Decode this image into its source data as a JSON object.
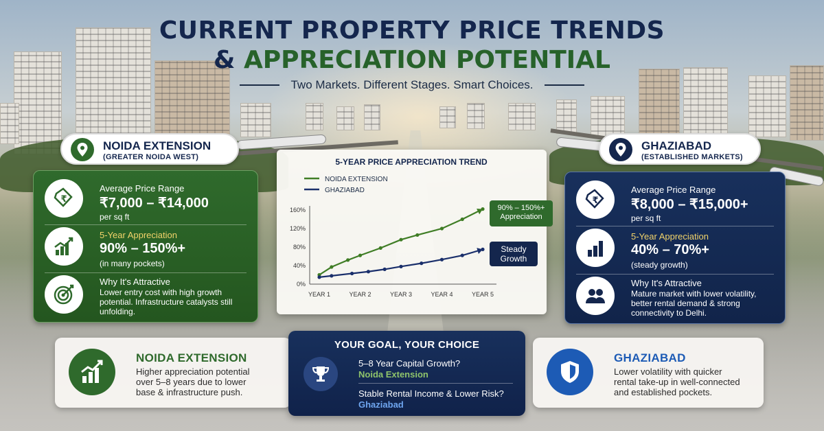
{
  "header": {
    "title_line1": "CURRENT PROPERTY PRICE TRENDS",
    "title_amp": "&",
    "title_line2_rest": " APPRECIATION POTENTIAL",
    "subtitle": "Two Markets. Different Stages. Smart Choices."
  },
  "noida": {
    "name": "NOIDA EXTENSION",
    "subname": "(GREATER NOIDA WEST)",
    "price_label": "Average Price Range",
    "price_value": "₹7,000 – ₹14,000",
    "price_unit": "per sq ft",
    "appr_label": "5-Year Appreciation",
    "appr_value": "90% – 150%+",
    "appr_note": "(in many pockets)",
    "why_label": "Why It's Attractive",
    "why_text": "Lower entry cost with high growth potential. Infrastructure catalysts still unfolding."
  },
  "ghaziabad": {
    "name": "GHAZIABAD",
    "subname": "(ESTABLISHED MARKETS)",
    "price_label": "Average Price Range",
    "price_value": "₹8,000 – ₹15,000+",
    "price_unit": "per sq ft",
    "appr_label": "5-Year Appreciation",
    "appr_value": "40% – 70%+",
    "appr_note": "(steady growth)",
    "why_label": "Why It's Attractive",
    "why_text": "Mature market with lower volatility, better rental demand & strong connectivity to Delhi."
  },
  "chart_data": {
    "type": "line",
    "title": "5-YEAR PRICE APPRECIATION TREND",
    "categories": [
      "YEAR 1",
      "YEAR 2",
      "YEAR 3",
      "YEAR 4",
      "YEAR 5"
    ],
    "y_ticks": [
      "0%",
      "40%",
      "80%",
      "120%",
      "160%"
    ],
    "ylim": [
      0,
      160
    ],
    "series": [
      {
        "name": "NOIDA EXTENSION",
        "color": "#3f7d25",
        "x": [
          1,
          1.3,
          1.7,
          2.0,
          2.5,
          3.0,
          3.4,
          4.0,
          4.5,
          5.0
        ],
        "values": [
          20,
          37,
          52,
          62,
          78,
          96,
          106,
          120,
          140,
          162
        ]
      },
      {
        "name": "GHAZIABAD",
        "color": "#1a2f6b",
        "x": [
          1,
          1.3,
          1.8,
          2.2,
          2.6,
          3.0,
          3.5,
          4.0,
          4.5,
          5.0
        ],
        "values": [
          15,
          18,
          23,
          27,
          32,
          38,
          45,
          53,
          62,
          75
        ]
      }
    ],
    "callouts": [
      {
        "text_line1": "90% – 150%+",
        "text_line2": "Appreciation",
        "color": "#2f6a2c"
      },
      {
        "text_line1": "Steady",
        "text_line2": "Growth",
        "color": "#14264d"
      }
    ],
    "grid": false
  },
  "bottom": {
    "noida_title": "NOIDA EXTENSION",
    "noida_text_1": "Higher appreciation potential",
    "noida_text_2": "over 5–8 years due to lower",
    "noida_text_3": "base & infrastructure push.",
    "goal_title": "YOUR GOAL, YOUR CHOICE",
    "goal_q1": "5–8 Year Capital Growth?",
    "goal_a1": "Noida Extension",
    "goal_q2": "Stable Rental Income & Lower Risk?",
    "goal_a2": "Ghaziabad",
    "ghaz_title": "GHAZIABAD",
    "ghaz_text_1": "Lower volatility with quicker",
    "ghaz_text_2": "rental take-up in well-connected",
    "ghaz_text_3": "and established pockets."
  },
  "icons": [
    "location-pin-icon",
    "rupee-tag-icon",
    "growth-bars-icon",
    "target-icon",
    "people-icon",
    "trophy-icon",
    "shield-icon"
  ],
  "colors": {
    "green": "#2f6a2c",
    "navy": "#14264d",
    "accent_yellow": "#f2d36a",
    "ghaz_light": "#1d5bb5"
  }
}
